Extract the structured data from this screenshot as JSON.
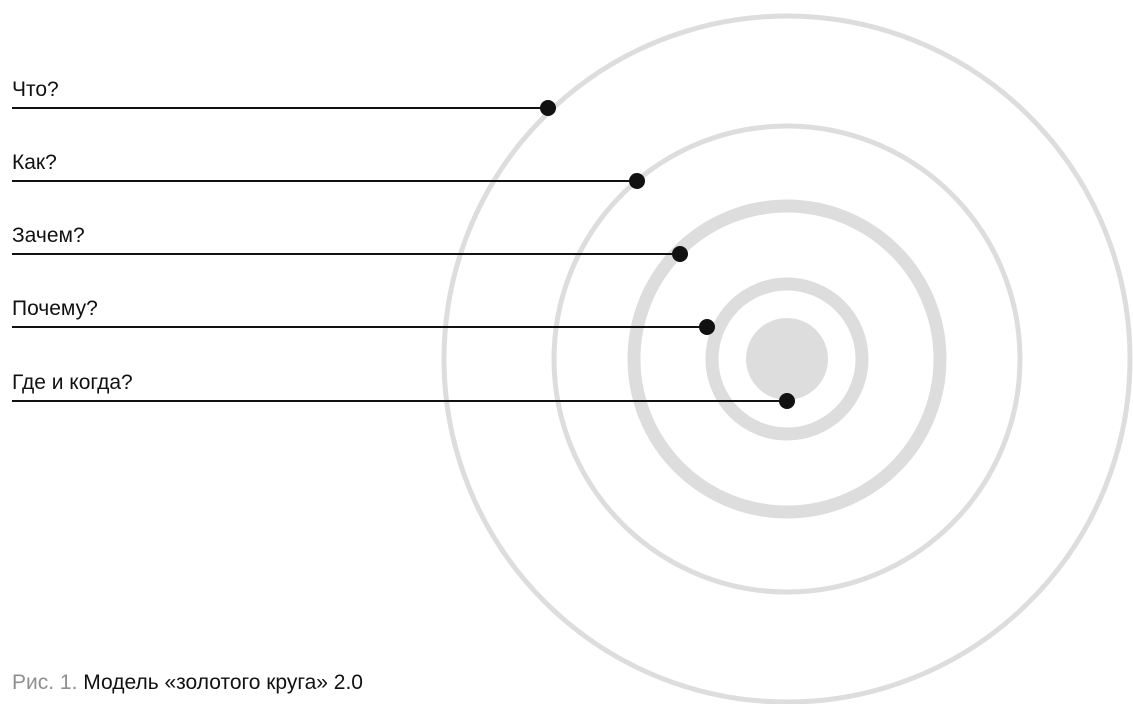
{
  "diagram": {
    "rings_color": "#dddddd",
    "line_color": "#111111",
    "rows": [
      {
        "label": "Что?"
      },
      {
        "label": "Как?"
      },
      {
        "label": "Зачем?"
      },
      {
        "label": "Почему?"
      },
      {
        "label": "Где и когда?"
      }
    ]
  },
  "caption": {
    "prefix": "Рис. 1.",
    "title": "Модель «золотого круга» 2.0"
  }
}
